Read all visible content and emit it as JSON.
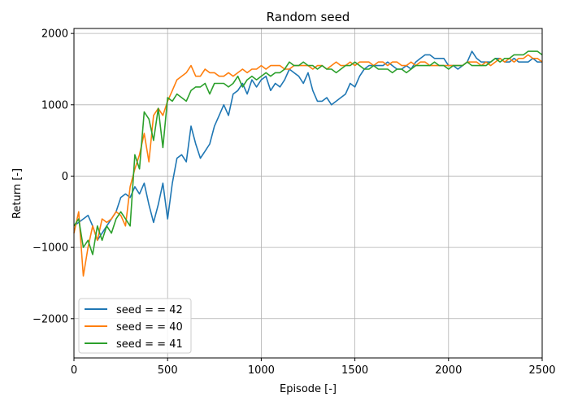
{
  "chart_data": {
    "type": "line",
    "title": "Random seed",
    "xlabel": "Episode [-]",
    "ylabel": "Return [-]",
    "xlim": [
      0,
      2500
    ],
    "ylim": [
      -2550,
      2070
    ],
    "grid": true,
    "legend_position": "lower-left",
    "x_ticks": [
      0,
      500,
      1000,
      1500,
      2000,
      2500
    ],
    "x_tick_labels": [
      "0",
      "500",
      "1000",
      "1500",
      "2000",
      "2500"
    ],
    "y_ticks": [
      -2000,
      -1000,
      0,
      1000,
      2000
    ],
    "y_tick_labels": [
      "−2000",
      "−1000",
      "0",
      "1000",
      "2000"
    ],
    "series": [
      {
        "name": "seed = = 42",
        "color": "#1f77b4",
        "x": [
          0,
          25,
          50,
          75,
          100,
          125,
          150,
          175,
          200,
          225,
          250,
          275,
          300,
          325,
          350,
          375,
          400,
          425,
          450,
          475,
          500,
          525,
          550,
          575,
          600,
          625,
          650,
          675,
          700,
          725,
          750,
          775,
          800,
          825,
          850,
          875,
          900,
          925,
          950,
          975,
          1000,
          1025,
          1050,
          1075,
          1100,
          1125,
          1150,
          1175,
          1200,
          1225,
          1250,
          1275,
          1300,
          1325,
          1350,
          1375,
          1400,
          1425,
          1450,
          1475,
          1500,
          1525,
          1550,
          1575,
          1600,
          1625,
          1650,
          1675,
          1700,
          1725,
          1750,
          1775,
          1800,
          1825,
          1850,
          1875,
          1900,
          1925,
          1950,
          1975,
          2000,
          2025,
          2050,
          2075,
          2100,
          2125,
          2150,
          2175,
          2200,
          2225,
          2250,
          2275,
          2300,
          2325,
          2350,
          2375,
          2400,
          2425,
          2450,
          2475,
          2500
        ],
        "y": [
          -700,
          -650,
          -600,
          -550,
          -700,
          -900,
          -800,
          -700,
          -600,
          -500,
          -300,
          -250,
          -300,
          -150,
          -250,
          -100,
          -400,
          -650,
          -400,
          -100,
          -600,
          -100,
          250,
          300,
          200,
          700,
          450,
          250,
          350,
          450,
          700,
          850,
          1000,
          850,
          1150,
          1200,
          1300,
          1150,
          1350,
          1250,
          1350,
          1400,
          1200,
          1300,
          1250,
          1350,
          1500,
          1450,
          1400,
          1300,
          1450,
          1200,
          1050,
          1050,
          1100,
          1000,
          1050,
          1100,
          1150,
          1300,
          1250,
          1400,
          1500,
          1550,
          1550,
          1550,
          1550,
          1600,
          1550,
          1500,
          1500,
          1550,
          1500,
          1600,
          1650,
          1700,
          1700,
          1650,
          1650,
          1650,
          1550,
          1550,
          1500,
          1550,
          1600,
          1750,
          1650,
          1600,
          1600,
          1600,
          1650,
          1650,
          1600,
          1600,
          1650,
          1600,
          1600,
          1600,
          1650,
          1600,
          1600
        ]
      },
      {
        "name": "seed = = 40",
        "color": "#ff7f0e",
        "x": [
          0,
          25,
          50,
          75,
          100,
          125,
          150,
          175,
          200,
          225,
          250,
          275,
          300,
          325,
          350,
          375,
          400,
          425,
          450,
          475,
          500,
          525,
          550,
          575,
          600,
          625,
          650,
          675,
          700,
          725,
          750,
          775,
          800,
          825,
          850,
          875,
          900,
          925,
          950,
          975,
          1000,
          1025,
          1050,
          1075,
          1100,
          1125,
          1150,
          1175,
          1200,
          1225,
          1250,
          1275,
          1300,
          1325,
          1350,
          1375,
          1400,
          1425,
          1450,
          1475,
          1500,
          1525,
          1550,
          1575,
          1600,
          1625,
          1650,
          1675,
          1700,
          1725,
          1750,
          1775,
          1800,
          1825,
          1850,
          1875,
          1900,
          1925,
          1950,
          1975,
          2000,
          2025,
          2050,
          2075,
          2100,
          2125,
          2150,
          2175,
          2200,
          2225,
          2250,
          2275,
          2300,
          2325,
          2350,
          2375,
          2400,
          2425,
          2450,
          2475,
          2500
        ],
        "y": [
          -800,
          -500,
          -1400,
          -1000,
          -700,
          -900,
          -600,
          -650,
          -600,
          -500,
          -550,
          -700,
          -150,
          100,
          300,
          600,
          200,
          850,
          950,
          850,
          1050,
          1200,
          1350,
          1400,
          1450,
          1550,
          1400,
          1400,
          1500,
          1450,
          1450,
          1400,
          1400,
          1450,
          1400,
          1450,
          1500,
          1450,
          1500,
          1500,
          1550,
          1500,
          1550,
          1550,
          1550,
          1500,
          1500,
          1550,
          1550,
          1550,
          1550,
          1500,
          1550,
          1550,
          1500,
          1550,
          1600,
          1550,
          1550,
          1600,
          1550,
          1600,
          1600,
          1600,
          1550,
          1600,
          1600,
          1550,
          1600,
          1600,
          1550,
          1550,
          1600,
          1550,
          1600,
          1600,
          1550,
          1550,
          1550,
          1550,
          1550,
          1550,
          1550,
          1550,
          1600,
          1600,
          1600,
          1550,
          1600,
          1550,
          1600,
          1650,
          1600,
          1650,
          1600,
          1650,
          1650,
          1700,
          1650,
          1650,
          1600
        ]
      },
      {
        "name": "seed = = 41",
        "color": "#2ca02c",
        "x": [
          0,
          25,
          50,
          75,
          100,
          125,
          150,
          175,
          200,
          225,
          250,
          275,
          300,
          325,
          350,
          375,
          400,
          425,
          450,
          475,
          500,
          525,
          550,
          575,
          600,
          625,
          650,
          675,
          700,
          725,
          750,
          775,
          800,
          825,
          850,
          875,
          900,
          925,
          950,
          975,
          1000,
          1025,
          1050,
          1075,
          1100,
          1125,
          1150,
          1175,
          1200,
          1225,
          1250,
          1275,
          1300,
          1325,
          1350,
          1375,
          1400,
          1425,
          1450,
          1475,
          1500,
          1525,
          1550,
          1575,
          1600,
          1625,
          1650,
          1675,
          1700,
          1725,
          1750,
          1775,
          1800,
          1825,
          1850,
          1875,
          1900,
          1925,
          1950,
          1975,
          2000,
          2025,
          2050,
          2075,
          2100,
          2125,
          2150,
          2175,
          2200,
          2225,
          2250,
          2275,
          2300,
          2325,
          2350,
          2375,
          2400,
          2425,
          2450,
          2475,
          2500
        ],
        "y": [
          -700,
          -600,
          -1000,
          -900,
          -1100,
          -700,
          -900,
          -700,
          -800,
          -600,
          -500,
          -600,
          -700,
          300,
          100,
          900,
          800,
          500,
          950,
          400,
          1100,
          1050,
          1150,
          1100,
          1050,
          1200,
          1250,
          1250,
          1300,
          1150,
          1300,
          1300,
          1300,
          1250,
          1300,
          1400,
          1250,
          1350,
          1400,
          1350,
          1400,
          1450,
          1400,
          1450,
          1450,
          1500,
          1600,
          1550,
          1550,
          1600,
          1550,
          1550,
          1500,
          1550,
          1500,
          1500,
          1450,
          1500,
          1550,
          1550,
          1600,
          1550,
          1500,
          1500,
          1550,
          1500,
          1500,
          1500,
          1450,
          1500,
          1500,
          1450,
          1500,
          1550,
          1550,
          1550,
          1550,
          1600,
          1550,
          1550,
          1500,
          1550,
          1550,
          1550,
          1600,
          1550,
          1550,
          1550,
          1550,
          1600,
          1650,
          1600,
          1650,
          1650,
          1700,
          1700,
          1700,
          1750,
          1750,
          1750,
          1700
        ]
      }
    ]
  }
}
